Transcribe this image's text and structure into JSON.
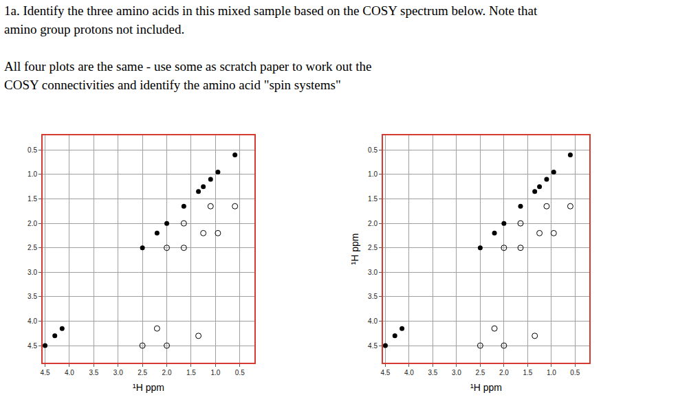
{
  "header": {
    "question": [
      "1a. Identify the three amino acids in this mixed sample based on the COSY spectrum below.  Note that",
      "amino group protons not included."
    ],
    "instructions": [
      "All four plots are the same - use some as scratch paper to work out the",
      "COSY connectivities and identify the amino acid \"spin systems\""
    ]
  },
  "chart_data": [
    {
      "type": "scatter",
      "xlabel": "¹H ppm",
      "xlim": [
        4.55,
        0.2
      ],
      "ylim": [
        4.85,
        0.2
      ],
      "xticks": [
        4.5,
        {
          "value": 4,
          "label": "4.0"
        },
        3.5,
        {
          "value": 3,
          "label": "3.0"
        },
        2.5,
        {
          "value": 2,
          "label": "2.0"
        },
        1.5,
        {
          "value": 1,
          "label": "1.0"
        },
        0.5
      ],
      "yticks": [
        0.5,
        {
          "value": 1,
          "label": "1.0"
        },
        1.5,
        {
          "value": 2,
          "label": "2.0"
        },
        2.5,
        {
          "value": 3,
          "label": "3.0"
        },
        3.5,
        {
          "value": 4,
          "label": "4.0"
        },
        4.5
      ],
      "grid": true,
      "series": [
        {
          "marker": "filled",
          "color": "#000000",
          "x": [
            0.6,
            0.95,
            1.1,
            1.25,
            1.35,
            1.65,
            2.0,
            2.2,
            2.5,
            4.15,
            4.3,
            4.5
          ],
          "values": [
            0.6,
            0.95,
            1.1,
            1.25,
            1.35,
            1.65,
            2.0,
            2.2,
            2.5,
            4.15,
            4.3,
            4.5
          ]
        },
        {
          "marker": "open",
          "color": "#000000",
          "x": [
            1.1,
            0.6,
            1.65,
            1.25,
            0.95,
            2.0,
            1.65,
            2.2,
            1.35,
            2.5,
            2.0
          ],
          "values": [
            1.65,
            1.65,
            2.0,
            2.2,
            2.2,
            2.5,
            2.5,
            4.15,
            4.3,
            4.5,
            4.5
          ]
        }
      ]
    },
    {
      "type": "scatter",
      "xlabel": "¹H ppm",
      "ylabel": "¹H ppm",
      "xlim": [
        4.55,
        0.2
      ],
      "ylim": [
        4.85,
        0.2
      ],
      "xticks": [
        4.5,
        {
          "value": 4,
          "label": "4.0"
        },
        3.5,
        {
          "value": 3,
          "label": "3.0"
        },
        2.5,
        {
          "value": 2,
          "label": "2.0"
        },
        1.5,
        {
          "value": 1,
          "label": "1.0"
        },
        0.5
      ],
      "yticks": [
        0.5,
        {
          "value": 1,
          "label": "1.0"
        },
        1.5,
        {
          "value": 2,
          "label": "2.0"
        },
        2.5,
        {
          "value": 3,
          "label": "3.0"
        },
        3.5,
        {
          "value": 4,
          "label": "4.0"
        },
        4.5
      ],
      "grid": true,
      "series": [
        {
          "marker": "filled",
          "color": "#000000",
          "x": [
            0.6,
            0.95,
            1.1,
            1.25,
            1.35,
            1.65,
            2.0,
            2.2,
            2.5,
            4.15,
            4.3,
            4.5
          ],
          "values": [
            0.6,
            0.95,
            1.1,
            1.25,
            1.35,
            1.65,
            2.0,
            2.2,
            2.5,
            4.15,
            4.3,
            4.5
          ]
        },
        {
          "marker": "open",
          "color": "#000000",
          "x": [
            1.1,
            0.6,
            1.65,
            1.25,
            0.95,
            2.0,
            1.65,
            2.2,
            1.35,
            2.5,
            2.0
          ],
          "values": [
            1.65,
            1.65,
            2.0,
            2.2,
            2.2,
            2.5,
            2.5,
            4.15,
            4.3,
            4.5,
            4.5
          ]
        }
      ]
    }
  ]
}
